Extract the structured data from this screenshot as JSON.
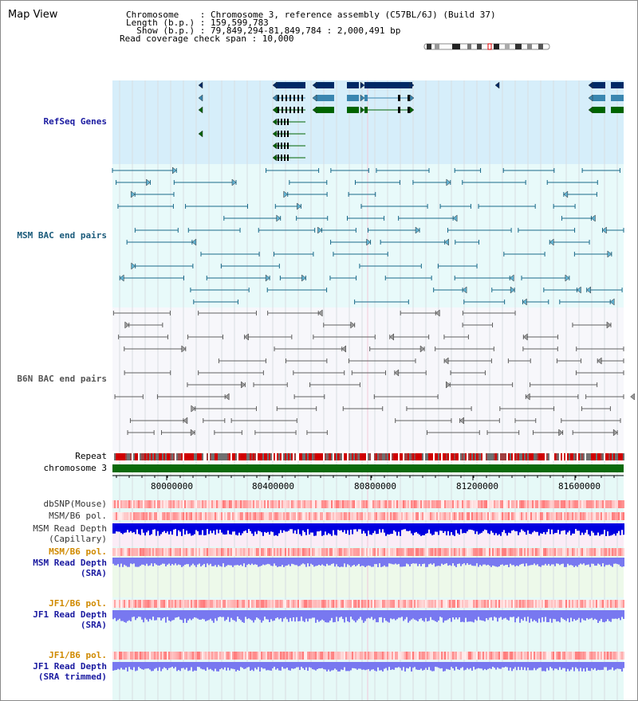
{
  "app": {
    "title": "Map View"
  },
  "info": {
    "chromosome_label": "Chromosome    : Chromosome 3, reference assembly (C57BL/6J) (Build 37)",
    "length_label": "Length (b.p.) : 159,599,783",
    "show_label": "  Show (b.p.) : 79,849,294-81,849,784 : 2,000,491 bp",
    "coverage_label": "Read coverage check span : 10,000"
  },
  "tracks": {
    "refseq": "RefSeq Genes",
    "msm_bac": "MSM BAC end pairs",
    "b6n_bac": "B6N BAC end pairs",
    "repeat": "Repeat",
    "chromosome": "chromosome 3",
    "dbsnp": "dbSNP(Mouse)",
    "msm_pol": "MSM/B6 pol.",
    "msm_depth_cap_1": "MSM Read Depth",
    "msm_depth_cap_2": "(Capillary)",
    "msm_pol_sra": "MSM/B6 pol.",
    "msm_depth_sra_1": "MSM Read Depth",
    "msm_depth_sra_2": "(SRA)",
    "jf1_pol": "JF1/B6 pol.",
    "jf1_depth_1": "JF1 Read Depth",
    "jf1_depth_2": "(SRA)",
    "jf1_pol_trim": "JF1/B6 pol.",
    "jf1_trim_1": "JF1 Read Depth",
    "jf1_trim_2": "(SRA trimmed)"
  },
  "ruler": {
    "ticks": [
      "80000000",
      "80400000",
      "80800000",
      "81200000",
      "81600000"
    ]
  },
  "colors": {
    "refseq_bg": "#d6eefa",
    "msm_bg": "#e8fafa",
    "b6n_bg": "#f7f7fb",
    "gene_dark": "#002a66",
    "gene_mid": "#3a86b0",
    "gene_green": "#006400",
    "msm_line": "#1a6a8a",
    "b6n_line": "#606060",
    "chromosome": "#0a6a0a",
    "label_blue": "#1a1aa0",
    "label_teal": "#1a5a7a",
    "label_orange": "#d08a00",
    "depth_blue": "#0000e0",
    "depth_light": "#7878f0"
  }
}
